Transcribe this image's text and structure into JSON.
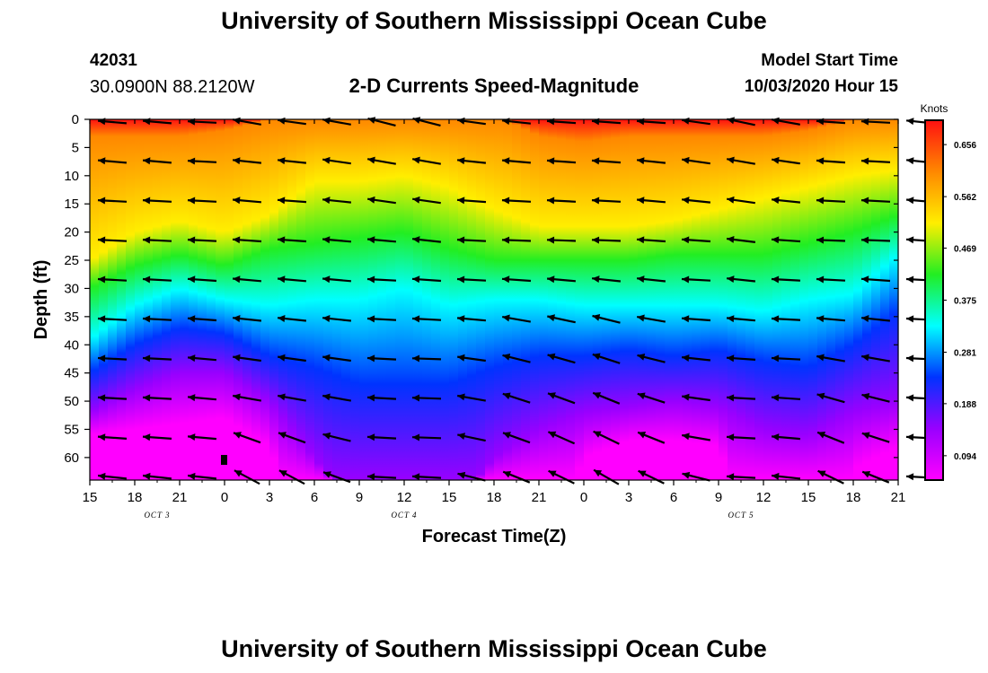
{
  "header": {
    "title": "University of Southern Mississippi Ocean Cube",
    "footer_title": "University of Southern Mississippi Ocean Cube",
    "station_id": "42031",
    "station_coords": "30.0900N 88.2120W",
    "plot_title": "2-D Currents Speed-Magnitude",
    "start_label": "Model Start Time",
    "start_value": "10/03/2020 Hour 15"
  },
  "colors": {
    "magenta": "#ff00ff",
    "violet": "#9900ff",
    "blue": "#0033ff",
    "cyan": "#00ffff",
    "green": "#22ee22",
    "yellow": "#ffee00",
    "orange": "#ff8800",
    "red": "#ff1111",
    "arrow": "#000000"
  },
  "chart_data": {
    "type": "heatmap",
    "title": "2-D Currents Speed-Magnitude",
    "xlabel": "Forecast Time(Z)",
    "ylabel": "Depth (ft)",
    "x_tick_labels": [
      "15",
      "18",
      "21",
      "0",
      "3",
      "6",
      "9",
      "12",
      "15",
      "18",
      "21",
      "0",
      "3",
      "6",
      "9",
      "12",
      "15",
      "18",
      "21"
    ],
    "date_labels": [
      {
        "label": "OCT 3",
        "tick_index": 1.5
      },
      {
        "label": "OCT 4",
        "tick_index": 7
      },
      {
        "label": "OCT 5",
        "tick_index": 14.5
      }
    ],
    "y_ticks": [
      0,
      5,
      10,
      15,
      20,
      25,
      30,
      35,
      40,
      45,
      50,
      55,
      60
    ],
    "ylim": [
      0,
      64
    ],
    "colorbar": {
      "unit_label": "Knots",
      "ticks": [
        "0.656",
        "0.562",
        "0.469",
        "0.375",
        "0.281",
        "0.188",
        "0.094"
      ],
      "range": [
        0.05,
        0.7
      ]
    },
    "time_hours": [
      0,
      3,
      6,
      9,
      12,
      15,
      18,
      21,
      24,
      27,
      30,
      33,
      36,
      39,
      42,
      45,
      48,
      51,
      54
    ],
    "speed_profiles": [
      {
        "time": 0,
        "boundaries": [
          3,
          25,
          30,
          39,
          45,
          52,
          56
        ]
      },
      {
        "time": 3,
        "boundaries": [
          3,
          20,
          26,
          33,
          40,
          48,
          55
        ]
      },
      {
        "time": 6,
        "boundaries": [
          3,
          18,
          24,
          30,
          37,
          45,
          54
        ]
      },
      {
        "time": 9,
        "boundaries": [
          2,
          20,
          26,
          32,
          38,
          45,
          53
        ]
      },
      {
        "time": 12,
        "boundaries": [
          0,
          17,
          23,
          33,
          42,
          50,
          58
        ]
      },
      {
        "time": 15,
        "boundaries": [
          -3,
          11,
          22,
          32,
          44,
          60,
          80
        ]
      },
      {
        "time": 18,
        "boundaries": [
          -3,
          11,
          21,
          32,
          47,
          70,
          80
        ]
      },
      {
        "time": 21,
        "boundaries": [
          -4,
          10,
          20,
          30,
          47,
          70,
          80
        ]
      },
      {
        "time": 24,
        "boundaries": [
          -3,
          12,
          23,
          33,
          47,
          70,
          80
        ]
      },
      {
        "time": 27,
        "boundaries": [
          -1,
          16,
          25,
          32,
          44,
          60,
          80
        ]
      },
      {
        "time": 30,
        "boundaries": [
          3,
          19,
          25,
          32,
          42,
          55,
          80
        ]
      },
      {
        "time": 33,
        "boundaries": [
          4,
          19,
          25,
          33,
          42,
          52,
          60
        ]
      },
      {
        "time": 36,
        "boundaries": [
          3,
          19,
          25,
          33,
          41,
          51,
          57
        ]
      },
      {
        "time": 39,
        "boundaries": [
          3,
          18,
          24,
          33,
          42,
          50,
          57
        ]
      },
      {
        "time": 42,
        "boundaries": [
          3,
          16,
          24,
          33,
          41,
          51,
          58
        ]
      },
      {
        "time": 45,
        "boundaries": [
          3,
          14,
          24,
          34,
          43,
          55,
          80
        ]
      },
      {
        "time": 48,
        "boundaries": [
          2,
          12,
          22,
          32,
          44,
          56,
          80
        ]
      },
      {
        "time": 51,
        "boundaries": [
          0,
          10,
          20,
          31,
          40,
          52,
          62
        ]
      },
      {
        "time": 54,
        "boundaries": [
          0,
          9,
          17,
          24,
          34,
          50,
          58
        ]
      }
    ],
    "arrow_depths": [
      0,
      7,
      14,
      21,
      28,
      35,
      42,
      49,
      56,
      63
    ],
    "arrow_cols": [
      {
        "time": 1.5,
        "dirs": [
          -5,
          -5,
          -3,
          -3,
          -3,
          -3,
          -3,
          -3,
          -4,
          -6
        ]
      },
      {
        "time": 4.5,
        "dirs": [
          -5,
          -5,
          -3,
          -3,
          -3,
          -3,
          -3,
          -3,
          -4,
          -6
        ]
      },
      {
        "time": 7.5,
        "dirs": [
          -3,
          -3,
          -3,
          -3,
          -4,
          -4,
          -5,
          -5,
          -5,
          -6
        ]
      },
      {
        "time": 10.5,
        "dirs": [
          -10,
          -6,
          -5,
          -4,
          -5,
          -6,
          -8,
          -10,
          -20,
          -28
        ]
      },
      {
        "time": 13.5,
        "dirs": [
          -8,
          -6,
          -4,
          -4,
          -5,
          -6,
          -8,
          -10,
          -20,
          -28
        ]
      },
      {
        "time": 16.5,
        "dirs": [
          -10,
          -8,
          -6,
          -5,
          -5,
          -6,
          -8,
          -10,
          -14,
          -20
        ]
      },
      {
        "time": 19.5,
        "dirs": [
          -14,
          -10,
          -8,
          -5,
          -3,
          -3,
          -3,
          -3,
          -3,
          -3
        ]
      },
      {
        "time": 22.5,
        "dirs": [
          -14,
          -10,
          -8,
          -6,
          -4,
          -3,
          -2,
          -2,
          -2,
          -3
        ]
      },
      {
        "time": 25.5,
        "dirs": [
          -8,
          -6,
          -4,
          -3,
          -3,
          -5,
          -8,
          -10,
          -12,
          -14
        ]
      },
      {
        "time": 28.5,
        "dirs": [
          -6,
          -5,
          -3,
          -2,
          -4,
          -10,
          -14,
          -18,
          -20,
          -22
        ]
      },
      {
        "time": 31.5,
        "dirs": [
          -4,
          -4,
          -3,
          -2,
          -5,
          -12,
          -16,
          -20,
          -24,
          -26
        ]
      },
      {
        "time": 34.5,
        "dirs": [
          -4,
          -4,
          -3,
          -2,
          -6,
          -14,
          -18,
          -22,
          -26,
          -30
        ]
      },
      {
        "time": 37.5,
        "dirs": [
          -4,
          -6,
          -5,
          -4,
          -6,
          -10,
          -14,
          -18,
          -22,
          -26
        ]
      },
      {
        "time": 40.5,
        "dirs": [
          -8,
          -8,
          -6,
          -4,
          -3,
          -4,
          -6,
          -8,
          -10,
          -14
        ]
      },
      {
        "time": 43.5,
        "dirs": [
          -12,
          -10,
          -8,
          -7,
          -6,
          -5,
          -4,
          -3,
          -3,
          -3
        ]
      },
      {
        "time": 46.5,
        "dirs": [
          -10,
          -8,
          -6,
          -4,
          -3,
          -3,
          -3,
          -4,
          -5,
          -6
        ]
      },
      {
        "time": 49.5,
        "dirs": [
          -4,
          -4,
          -3,
          -2,
          -3,
          -5,
          -10,
          -16,
          -22,
          -26
        ]
      },
      {
        "time": 52.5,
        "dirs": [
          -3,
          -3,
          -3,
          -2,
          -4,
          -6,
          -10,
          -14,
          -18,
          -22
        ]
      },
      {
        "time": 55.5,
        "dirs": [
          -6,
          -6,
          -5,
          -4,
          -3,
          -3,
          -3,
          -3,
          -3,
          -3
        ]
      }
    ]
  }
}
